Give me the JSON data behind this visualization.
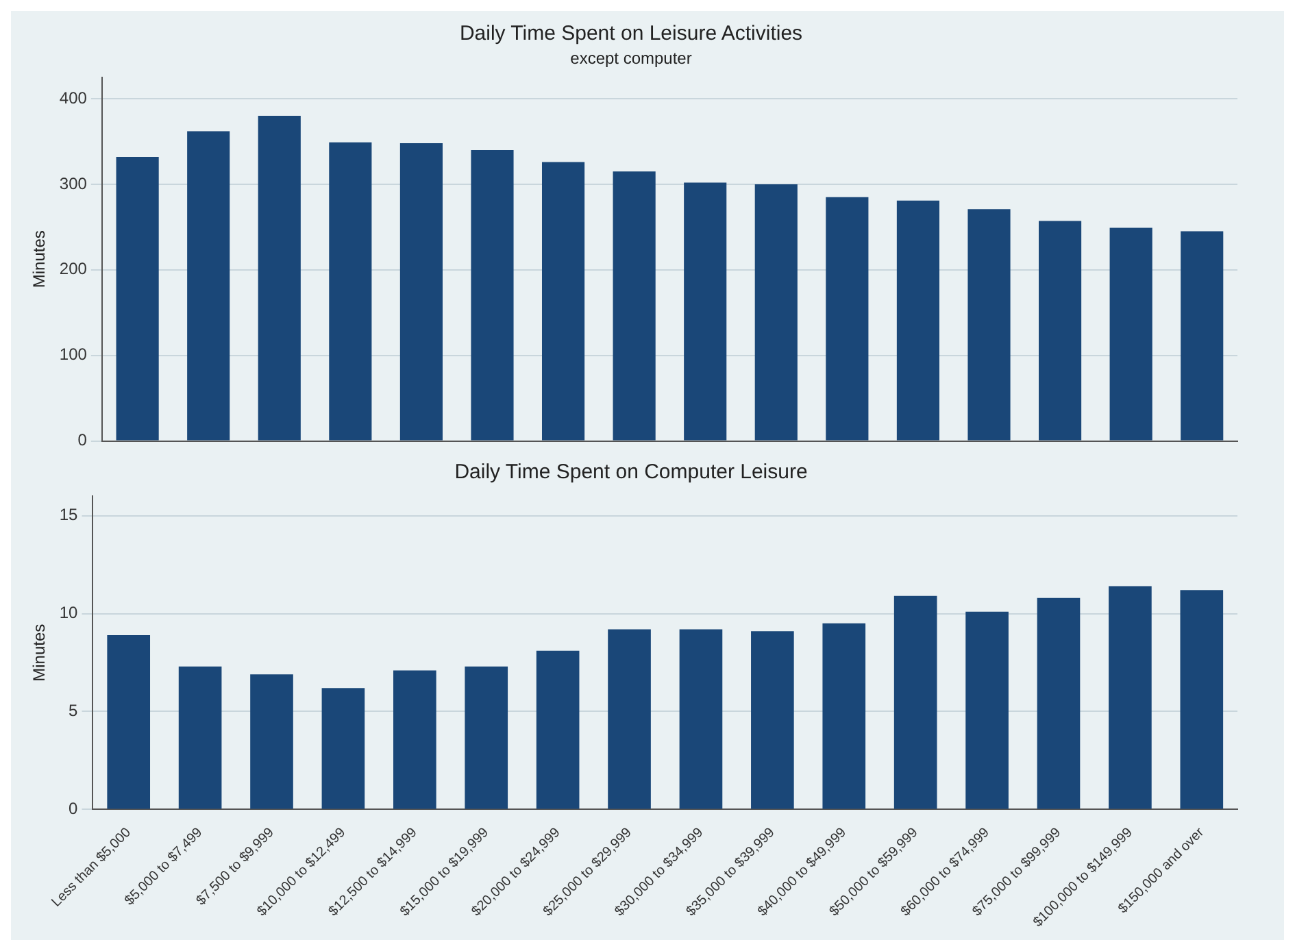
{
  "chart_data": [
    {
      "type": "bar",
      "title": "Daily Time Spent on Leisure Activities",
      "subtitle": "except computer",
      "ylabel": "Minutes",
      "categories": [
        null,
        null,
        null,
        null,
        null,
        null,
        null,
        null,
        null,
        null,
        null,
        null,
        null,
        null,
        null,
        null
      ],
      "series": [
        {
          "color": "#1a4778",
          "values": [
            332,
            362,
            380,
            349,
            348,
            340,
            326,
            315,
            302,
            300,
            285,
            281,
            271,
            257,
            249,
            245
          ]
        }
      ],
      "ylim": [
        0,
        425
      ],
      "yticks": [
        0,
        100,
        200,
        300,
        400
      ],
      "grid": "y",
      "tick_labels": "y",
      "legend": false
    },
    {
      "type": "bar",
      "title": "Daily Time Spent on Computer Leisure",
      "ylabel": "Minutes",
      "categories": [
        "Less than $5,000",
        "$5,000 to $7,499",
        "$7,500 to $9,999",
        "$10,000 to $12,499",
        "$12,500 to $14,999",
        "$15,000 to $19,999",
        "$20,000 to $24,999",
        "$25,000 to $29,999",
        "$30,000 to $34,999",
        "$35,000 to $39,999",
        "$40,000 to $49,999",
        "$50,000 to $59,999",
        "$60,000 to $74,999",
        "$75,000 to $99,999",
        "$100,000 to $149,999",
        "$150,000 and over"
      ],
      "series": [
        {
          "color": "#1a4778",
          "values": [
            8.9,
            7.3,
            6.9,
            6.2,
            7.1,
            7.3,
            8.1,
            9.2,
            9.2,
            9.1,
            9.5,
            10.9,
            10.1,
            10.8,
            11.4,
            11.2
          ]
        }
      ],
      "ylim": [
        0,
        16
      ],
      "yticks": [
        0,
        5,
        10,
        15
      ],
      "grid": "y",
      "legend": false
    }
  ]
}
